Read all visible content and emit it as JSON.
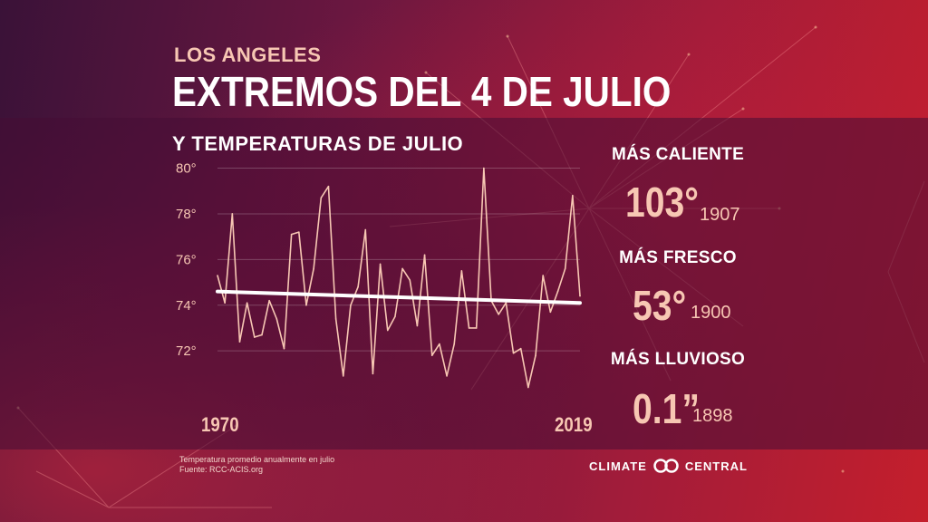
{
  "header": {
    "city": "LOS ANGELES",
    "title": "EXTREMOS DEL 4 DE JULIO",
    "subtitle": "Y TEMPERATURAS DE JULIO"
  },
  "chart_data": {
    "type": "line",
    "title": "Y TEMPERATURAS DE JULIO",
    "x_start_label": "1970",
    "x_end_label": "2019",
    "x": [
      1970,
      1971,
      1972,
      1973,
      1974,
      1975,
      1976,
      1977,
      1978,
      1979,
      1980,
      1981,
      1982,
      1983,
      1984,
      1985,
      1986,
      1987,
      1988,
      1989,
      1990,
      1991,
      1992,
      1993,
      1994,
      1995,
      1996,
      1997,
      1998,
      1999,
      2000,
      2001,
      2002,
      2003,
      2004,
      2005,
      2006,
      2007,
      2008,
      2009,
      2010,
      2011,
      2012,
      2013,
      2014,
      2015,
      2016,
      2017,
      2018,
      2019
    ],
    "series": [
      {
        "values": [
          75.3,
          74.1,
          78.0,
          72.4,
          74.1,
          72.6,
          72.7,
          74.2,
          73.4,
          72.1,
          77.1,
          77.2,
          74.0,
          75.6,
          78.7,
          79.2,
          73.4,
          70.9,
          74.0,
          74.8,
          77.3,
          71.0,
          75.8,
          72.9,
          73.5,
          75.6,
          75.1,
          73.1,
          76.2,
          71.8,
          72.3,
          70.9,
          72.3,
          75.5,
          73.0,
          73.0,
          80.0,
          74.2,
          73.6,
          74.1,
          71.9,
          72.1,
          70.4,
          71.8,
          75.3,
          73.7,
          74.6,
          75.6,
          78.8,
          74.4
        ],
        "color": "#f7c7b3"
      },
      {
        "values": [
          74.6,
          74.1
        ],
        "x": [
          1970,
          2019
        ],
        "color": "#ffffff"
      }
    ],
    "yticks": [
      "80°",
      "78°",
      "76°",
      "74°",
      "72°"
    ],
    "ytick_values": [
      80,
      78,
      76,
      74,
      72
    ],
    "ylim": [
      70.3,
      80.3
    ],
    "grid": true
  },
  "stats": [
    {
      "label": "MÁS CALIENTE",
      "value": "103°",
      "year": "1907"
    },
    {
      "label": "MÁS FRESCO",
      "value": "53°",
      "year": "1900"
    },
    {
      "label": "MÁS LLUVIOSO",
      "value": "0.1”",
      "year": "1898"
    }
  ],
  "footer": {
    "note_line1": "Temperatura promedio anualmente en julio",
    "note_line2": "Fuente: RCC-ACIS.org",
    "brand_left": "CLIMATE",
    "brand_right": "CENTRAL"
  },
  "colors": {
    "accent": "#f7c7b3",
    "band": "#460c34",
    "trend": "#ffffff"
  }
}
